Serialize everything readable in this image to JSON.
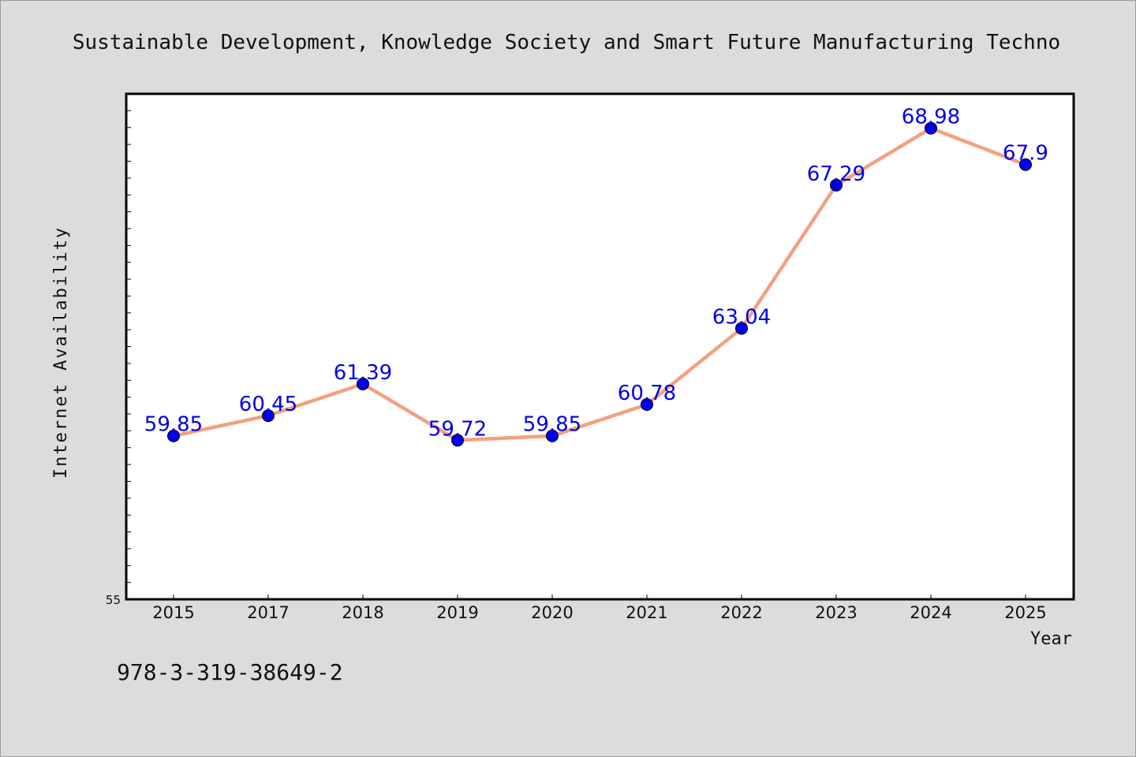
{
  "title": "Sustainable Development, Knowledge Society and Smart Future Manufacturing Techno",
  "footer": "978-3-319-38649-2",
  "chart_data": {
    "type": "line",
    "title": "Sustainable Development, Knowledge Society and Smart Future Manufacturing Techno",
    "xlabel": "Year",
    "ylabel": "Internet Availability",
    "categories": [
      "2015",
      "2017",
      "2018",
      "2019",
      "2020",
      "2021",
      "2022",
      "2023",
      "2024",
      "2025"
    ],
    "series": [
      {
        "values": [
          59.85,
          60.45,
          61.39,
          59.72,
          59.85,
          60.78,
          63.04,
          67.29,
          68.98,
          67.9
        ],
        "labels": [
          "59.85",
          "60.45",
          "61.39",
          "59.72",
          "59.85",
          "60.78",
          "63.04",
          "67.29",
          "68.98",
          "67.9"
        ]
      }
    ],
    "ylim": [
      55,
      70
    ],
    "yticks_labeled": [
      "55"
    ],
    "grid": false,
    "legend": "none",
    "colors": {
      "line": "#f4a07e",
      "marker": "#0000ee",
      "label": "#0000e6",
      "background": "#dcdcdc",
      "plot_background": "#ffffff"
    }
  }
}
